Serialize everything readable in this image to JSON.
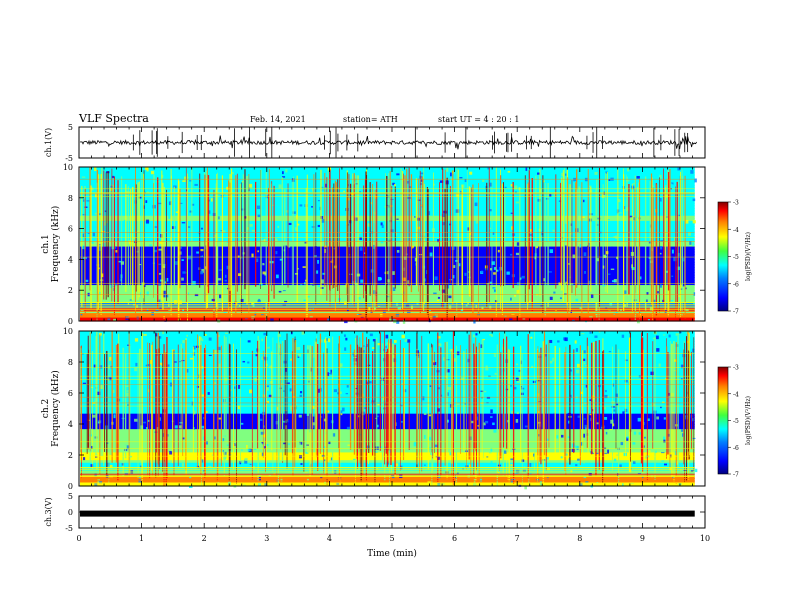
{
  "header": {
    "title": "VLF Spectra",
    "date": "Feb. 14, 2021",
    "station": "station= ATH",
    "start_ut": "start  UT =   4 : 20 : 1"
  },
  "chart_data": [
    {
      "type": "line",
      "ylabel": "ch.1(V)",
      "ylim": [
        -5,
        5
      ],
      "yticks": [
        "5",
        "-5"
      ],
      "xlim": [
        0,
        10
      ],
      "description_values": "noisy waveform centred near 0 V, amplitude about ±1.5 V"
    },
    {
      "type": "heatmap",
      "ylabel": "ch.1 Frequency (kHz)",
      "ylim": [
        0,
        10
      ],
      "yticks": [
        "0",
        "2",
        "4",
        "6",
        "8",
        "10"
      ],
      "xlim": [
        0,
        10
      ],
      "colorbar": {
        "label": "log(PSD)(V²/Hz)",
        "range": [
          -7,
          -3
        ],
        "ticks": [
          "-3",
          "-4",
          "-5",
          "-6",
          "-7"
        ]
      }
    },
    {
      "type": "heatmap",
      "ylabel": "ch.2 Frequency (kHz)",
      "ylim": [
        0,
        10
      ],
      "yticks": [
        "0",
        "2",
        "4",
        "6",
        "8",
        "10"
      ],
      "xlim": [
        0,
        10
      ],
      "colorbar": {
        "label": "log(PSD)(V²/Hz)",
        "range": [
          -7,
          -3
        ],
        "ticks": [
          "-3",
          "-4",
          "-5",
          "-6",
          "-7"
        ]
      }
    },
    {
      "type": "line",
      "ylabel": "ch.3(V)",
      "ylim": [
        -5,
        5
      ],
      "yticks": [
        "5",
        "0",
        "-5"
      ],
      "xlim": [
        0,
        10
      ],
      "xlabel": "Time  (min)",
      "xticks": [
        "0",
        "1",
        "2",
        "3",
        "4",
        "5",
        "6",
        "7",
        "8",
        "9",
        "10"
      ],
      "level": -0.5
    }
  ],
  "colors": {
    "cmap": [
      "#000080",
      "#0000ff",
      "#0080ff",
      "#00ffff",
      "#80ff80",
      "#ffff00",
      "#ff8000",
      "#ff0000",
      "#800000"
    ]
  }
}
